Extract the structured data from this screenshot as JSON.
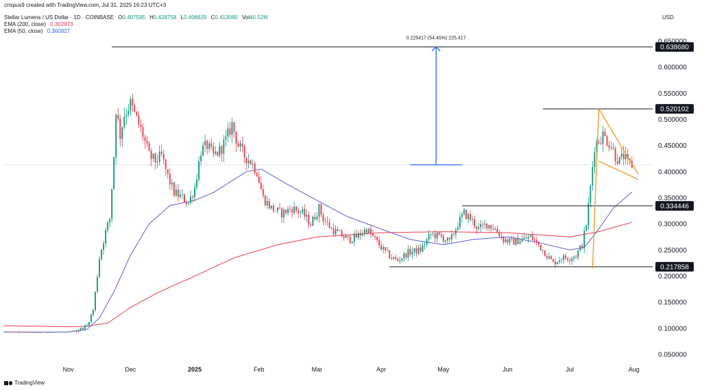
{
  "header": {
    "created_line": "crispus9 created with TradingView.com, Jul 31, 2025 16:23 UTC+3",
    "symbol": "Stellar Lumens / US Dollar · 1D · COINBASE",
    "o_label": "O",
    "o_value": "0.407595",
    "h_label": "H",
    "h_value": "0.428758",
    "l_label": "L",
    "l_value": "0.406629",
    "c_label": "C",
    "c_value": "0.413080",
    "vol_label": "Vol",
    "vol_value": "40.52M",
    "ema200_label": "EMA (200, close)",
    "ema200_value": "0.302873",
    "ema50_label": "EMA (50, close)",
    "ema50_value": "0.360927"
  },
  "currency": "USD",
  "footer": {
    "brand": "TradingView"
  },
  "colors": {
    "up": "#089981",
    "down": "#f23645",
    "ema200": "#f23645",
    "ema50": "#5b5be0",
    "wedge": "#f7931a",
    "measure": "#2962ff",
    "level": "#131722",
    "price_label_bg": "#131722"
  },
  "measure_label": "0.225417 (54.45%) 225,417",
  "levels": [
    {
      "value": 0.63868,
      "label": "0.638680"
    },
    {
      "value": 0.520102,
      "label": "0.520102"
    },
    {
      "value": 0.334446,
      "label": "0.334446"
    },
    {
      "value": 0.217858,
      "label": "0.217858"
    }
  ],
  "chart_data": {
    "type": "candlestick",
    "title": "Stellar Lumens / US Dollar · 1D · COINBASE",
    "ylabel": "USD",
    "ylim": [
      0.05,
      0.65
    ],
    "yticks": [
      "0.650000",
      "0.600000",
      "0.550000",
      "0.500000",
      "0.450000",
      "0.400000",
      "0.350000",
      "0.300000",
      "0.250000",
      "0.200000",
      "0.150000",
      "0.100000",
      "0.050000"
    ],
    "ytick_values": [
      0.65,
      0.6,
      0.55,
      0.5,
      0.45,
      0.4,
      0.35,
      0.3,
      0.25,
      0.2,
      0.15,
      0.1,
      0.05
    ],
    "xticks": [
      "Nov",
      "Dec",
      "2025",
      "Feb",
      "Mar",
      "Apr",
      "May",
      "Jun",
      "Jul",
      "Aug"
    ],
    "xtick_dates": [
      "2024-11-01",
      "2024-12-01",
      "2025-01-01",
      "2025-02-01",
      "2025-03-01",
      "2025-04-01",
      "2025-05-01",
      "2025-06-01",
      "2025-07-01",
      "2025-08-01"
    ],
    "x_range": [
      "2024-10-01",
      "2025-08-10"
    ],
    "grid": false,
    "legend": "top-left",
    "close_anchors": [
      [
        "2024-10-01",
        0.093
      ],
      [
        "2024-10-15",
        0.092
      ],
      [
        "2024-10-31",
        0.093
      ],
      [
        "2024-11-05",
        0.095
      ],
      [
        "2024-11-10",
        0.105
      ],
      [
        "2024-11-13",
        0.135
      ],
      [
        "2024-11-16",
        0.235
      ],
      [
        "2024-11-19",
        0.285
      ],
      [
        "2024-11-21",
        0.31
      ],
      [
        "2024-11-23",
        0.43
      ],
      [
        "2024-11-24",
        0.52
      ],
      [
        "2024-11-26",
        0.47
      ],
      [
        "2024-11-28",
        0.51
      ],
      [
        "2024-12-01",
        0.53
      ],
      [
        "2024-12-04",
        0.5
      ],
      [
        "2024-12-07",
        0.47
      ],
      [
        "2024-12-10",
        0.43
      ],
      [
        "2024-12-13",
        0.42
      ],
      [
        "2024-12-16",
        0.43
      ],
      [
        "2024-12-19",
        0.39
      ],
      [
        "2024-12-22",
        0.36
      ],
      [
        "2024-12-26",
        0.35
      ],
      [
        "2024-12-29",
        0.34
      ],
      [
        "2025-01-01",
        0.37
      ],
      [
        "2025-01-04",
        0.44
      ],
      [
        "2025-01-07",
        0.45
      ],
      [
        "2025-01-10",
        0.43
      ],
      [
        "2025-01-13",
        0.44
      ],
      [
        "2025-01-16",
        0.46
      ],
      [
        "2025-01-19",
        0.49
      ],
      [
        "2025-01-22",
        0.45
      ],
      [
        "2025-01-25",
        0.43
      ],
      [
        "2025-01-28",
        0.42
      ],
      [
        "2025-01-31",
        0.4
      ],
      [
        "2025-02-03",
        0.35
      ],
      [
        "2025-02-07",
        0.33
      ],
      [
        "2025-02-12",
        0.32
      ],
      [
        "2025-02-17",
        0.33
      ],
      [
        "2025-02-22",
        0.32
      ],
      [
        "2025-02-26",
        0.3
      ],
      [
        "2025-03-02",
        0.33
      ],
      [
        "2025-03-04",
        0.31
      ],
      [
        "2025-03-08",
        0.29
      ],
      [
        "2025-03-12",
        0.28
      ],
      [
        "2025-03-16",
        0.27
      ],
      [
        "2025-03-20",
        0.275
      ],
      [
        "2025-03-25",
        0.29
      ],
      [
        "2025-03-29",
        0.27
      ],
      [
        "2025-04-02",
        0.25
      ],
      [
        "2025-04-06",
        0.235
      ],
      [
        "2025-04-09",
        0.23
      ],
      [
        "2025-04-14",
        0.245
      ],
      [
        "2025-04-20",
        0.25
      ],
      [
        "2025-04-25",
        0.28
      ],
      [
        "2025-04-30",
        0.275
      ],
      [
        "2025-05-04",
        0.265
      ],
      [
        "2025-05-08",
        0.3
      ],
      [
        "2025-05-11",
        0.32
      ],
      [
        "2025-05-14",
        0.31
      ],
      [
        "2025-05-18",
        0.29
      ],
      [
        "2025-05-22",
        0.3
      ],
      [
        "2025-05-26",
        0.29
      ],
      [
        "2025-05-30",
        0.27
      ],
      [
        "2025-06-03",
        0.265
      ],
      [
        "2025-06-08",
        0.27
      ],
      [
        "2025-06-12",
        0.275
      ],
      [
        "2025-06-16",
        0.26
      ],
      [
        "2025-06-20",
        0.24
      ],
      [
        "2025-06-23",
        0.225
      ],
      [
        "2025-06-27",
        0.235
      ],
      [
        "2025-07-01",
        0.235
      ],
      [
        "2025-07-04",
        0.24
      ],
      [
        "2025-07-07",
        0.26
      ],
      [
        "2025-07-09",
        0.3
      ],
      [
        "2025-07-11",
        0.37
      ],
      [
        "2025-07-13",
        0.45
      ],
      [
        "2025-07-15",
        0.46
      ],
      [
        "2025-07-17",
        0.47
      ],
      [
        "2025-07-19",
        0.46
      ],
      [
        "2025-07-21",
        0.45
      ],
      [
        "2025-07-23",
        0.43
      ],
      [
        "2025-07-25",
        0.42
      ],
      [
        "2025-07-27",
        0.43
      ],
      [
        "2025-07-29",
        0.415
      ],
      [
        "2025-07-31",
        0.413
      ]
    ],
    "ema50_anchors": [
      [
        "2024-10-01",
        0.093
      ],
      [
        "2024-11-01",
        0.093
      ],
      [
        "2024-11-10",
        0.098
      ],
      [
        "2024-11-16",
        0.12
      ],
      [
        "2024-11-23",
        0.17
      ],
      [
        "2024-12-01",
        0.24
      ],
      [
        "2024-12-10",
        0.3
      ],
      [
        "2024-12-20",
        0.335
      ],
      [
        "2025-01-01",
        0.345
      ],
      [
        "2025-01-10",
        0.36
      ],
      [
        "2025-01-20",
        0.385
      ],
      [
        "2025-01-26",
        0.4
      ],
      [
        "2025-02-02",
        0.405
      ],
      [
        "2025-02-15",
        0.375
      ],
      [
        "2025-03-01",
        0.345
      ],
      [
        "2025-03-15",
        0.315
      ],
      [
        "2025-04-01",
        0.29
      ],
      [
        "2025-04-15",
        0.27
      ],
      [
        "2025-05-01",
        0.26
      ],
      [
        "2025-05-15",
        0.27
      ],
      [
        "2025-06-01",
        0.275
      ],
      [
        "2025-06-15",
        0.265
      ],
      [
        "2025-07-01",
        0.25
      ],
      [
        "2025-07-08",
        0.255
      ],
      [
        "2025-07-15",
        0.29
      ],
      [
        "2025-07-22",
        0.33
      ],
      [
        "2025-07-31",
        0.361
      ]
    ],
    "ema200_anchors": [
      [
        "2024-10-01",
        0.105
      ],
      [
        "2024-11-01",
        0.103
      ],
      [
        "2024-11-10",
        0.104
      ],
      [
        "2024-11-20",
        0.11
      ],
      [
        "2024-12-01",
        0.14
      ],
      [
        "2024-12-15",
        0.17
      ],
      [
        "2025-01-01",
        0.2
      ],
      [
        "2025-01-20",
        0.235
      ],
      [
        "2025-02-10",
        0.26
      ],
      [
        "2025-03-01",
        0.275
      ],
      [
        "2025-04-01",
        0.283
      ],
      [
        "2025-05-01",
        0.285
      ],
      [
        "2025-06-01",
        0.283
      ],
      [
        "2025-07-01",
        0.275
      ],
      [
        "2025-07-15",
        0.285
      ],
      [
        "2025-07-31",
        0.303
      ]
    ],
    "wedge": {
      "upper": [
        [
          "2025-07-15",
          0.52
        ],
        [
          "2025-08-03",
          0.395
        ]
      ],
      "lower": [
        [
          "2025-07-15",
          0.42
        ],
        [
          "2025-08-03",
          0.385
        ]
      ],
      "pole": [
        [
          "2025-07-12",
          0.215
        ],
        [
          "2025-07-15",
          0.52
        ]
      ]
    },
    "measure_dates": [
      "2025-04-15",
      "2025-05-10"
    ]
  }
}
